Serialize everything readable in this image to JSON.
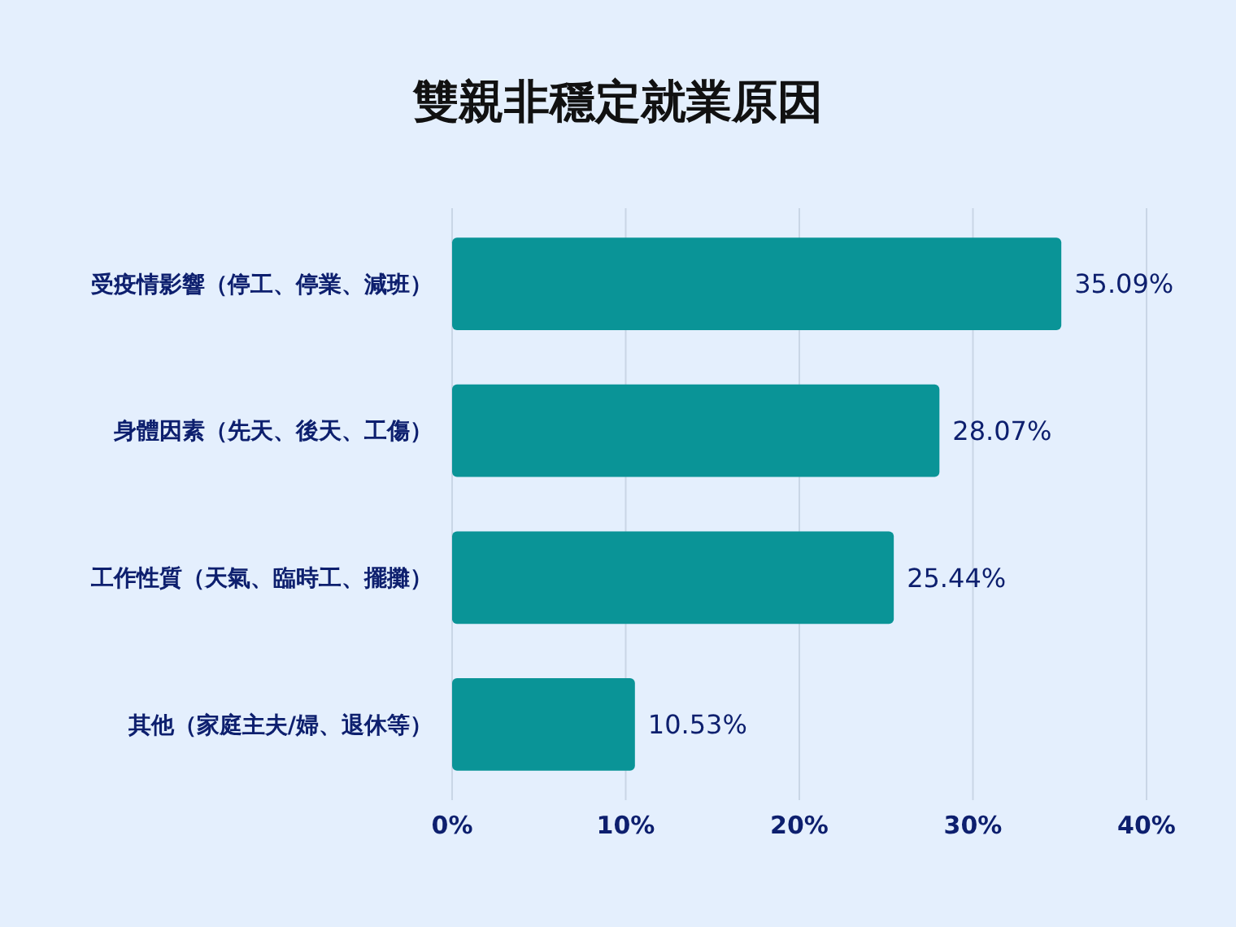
{
  "chart_data": {
    "type": "bar",
    "title": "雙親非穩定就業原因",
    "orientation": "horizontal",
    "categories": [
      "受疫情影響（停工、停業、減班）",
      "身體因素（先天、後天、工傷）",
      "工作性質（天氣、臨時工、擺攤）",
      "其他（家庭主夫/婦、退休等）"
    ],
    "values": [
      35.09,
      28.07,
      25.44,
      10.53
    ],
    "color": "#0a9497",
    "value_labels": [
      "35.09%",
      "28.07%",
      "25.44%",
      "10.53%"
    ],
    "xlim": [
      0,
      40
    ],
    "xticks": [
      {
        "value": 0,
        "label": "0%"
      },
      {
        "value": 10,
        "label": "10%"
      },
      {
        "value": 20,
        "label": "20%"
      },
      {
        "value": 30,
        "label": "30%"
      },
      {
        "value": 40,
        "label": "40%"
      }
    ],
    "grid": "x"
  }
}
